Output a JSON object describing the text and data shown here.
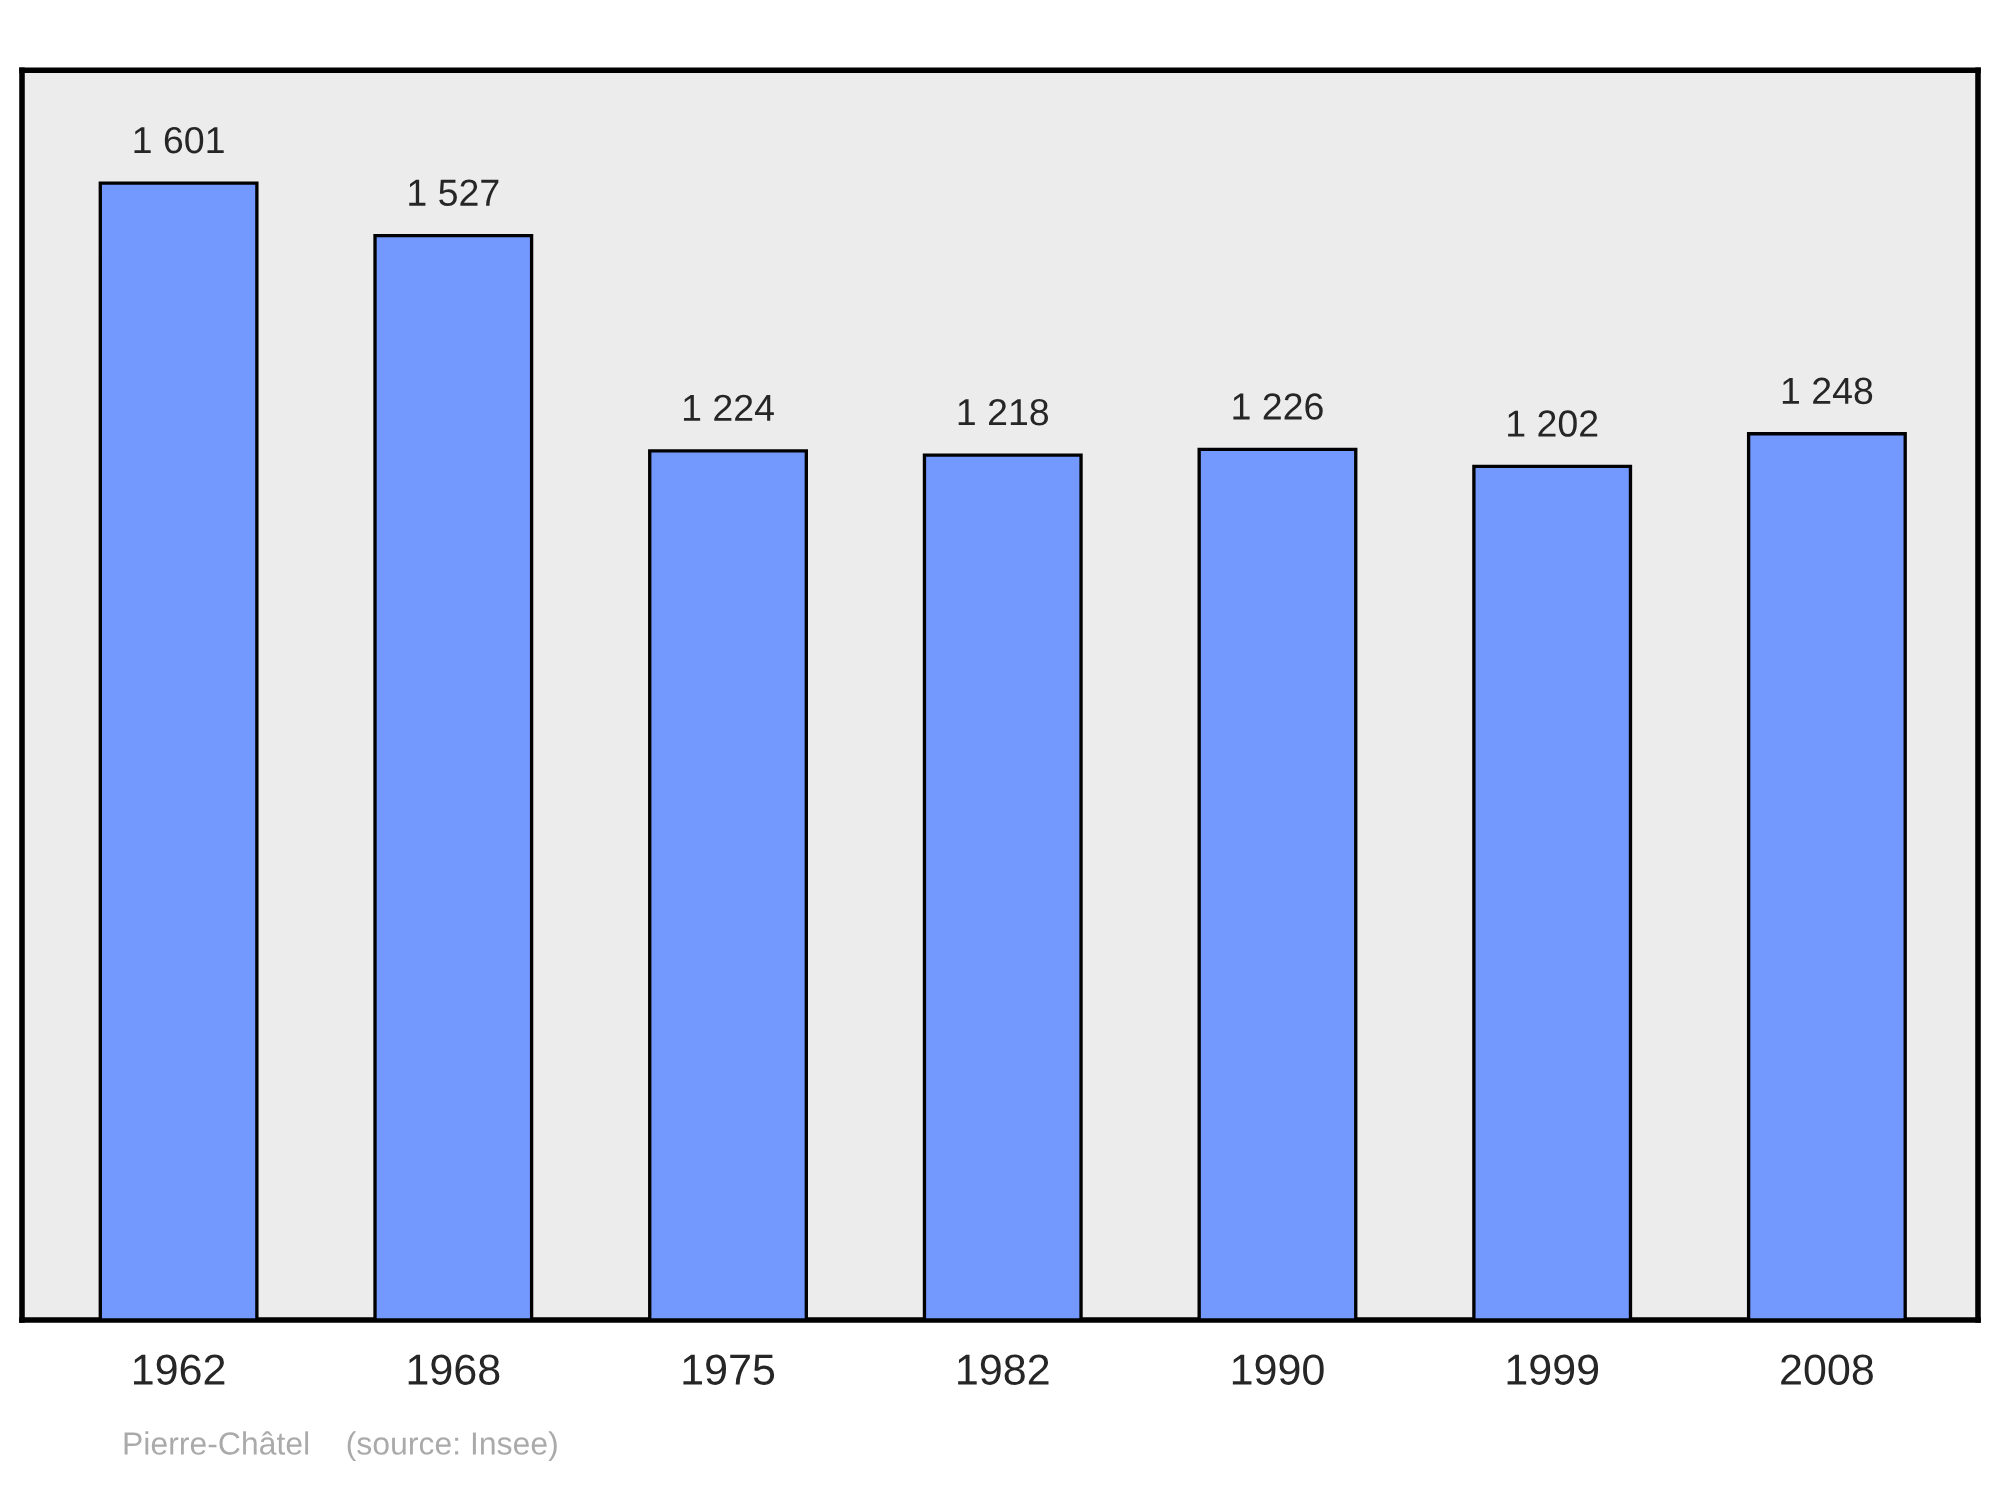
{
  "chart_data": {
    "type": "bar",
    "categories": [
      "1962",
      "1968",
      "1975",
      "1982",
      "1990",
      "1999",
      "2008"
    ],
    "values": [
      1601,
      1527,
      1224,
      1218,
      1226,
      1202,
      1248
    ],
    "color": "#7399ff",
    "ylim": [
      0,
      1760
    ],
    "data_labels": true,
    "grid": false,
    "legend": false,
    "annotations": [
      "Pierre-Châtel    (source: Insee)"
    ]
  }
}
